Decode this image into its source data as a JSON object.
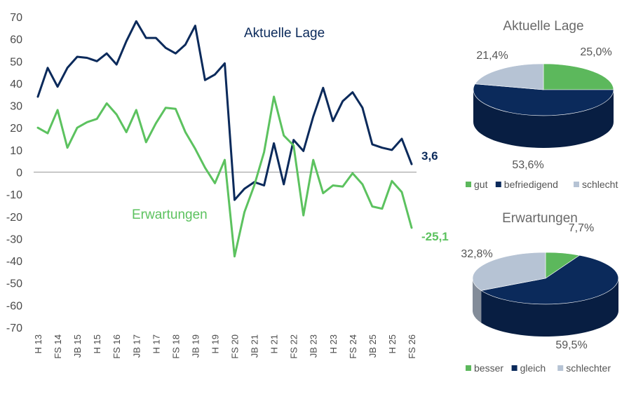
{
  "chart_data": [
    {
      "type": "line",
      "x_tick_labels": [
        "H 13",
        "FS 14",
        "JB 15",
        "H 15",
        "FS 16",
        "JB 17",
        "H 17",
        "FS 18",
        "JB 19",
        "H 19",
        "FS 20",
        "JB 21",
        "H 21",
        "FS 22",
        "JB 23",
        "H 23",
        "FS 24",
        "JB 25",
        "H 25",
        "FS 26"
      ],
      "ylim": [
        -70,
        70
      ],
      "y_ticks": [
        70,
        60,
        50,
        40,
        30,
        20,
        10,
        0,
        -10,
        -20,
        -30,
        -40,
        -50,
        -60,
        -70
      ],
      "grid": false,
      "zero_line": true,
      "series": [
        {
          "name": "Aktuelle Lage",
          "color": "#0b2a5b",
          "end_label": "3,6",
          "values": [
            34,
            47,
            38.5,
            47,
            52,
            51.5,
            50,
            53.5,
            48.5,
            59,
            68,
            60.5,
            60.5,
            56,
            53.5,
            57.5,
            66,
            41.5,
            44,
            49,
            -12.5,
            -7.5,
            -4.5,
            -6,
            13,
            -5.5,
            14.5,
            9.5,
            25,
            38,
            23,
            32,
            36,
            29,
            12.5,
            11,
            10,
            15,
            3.6
          ]
        },
        {
          "name": "Erwartungen",
          "color": "#5cc25f",
          "end_label": "-25,1",
          "values": [
            20,
            17.5,
            28,
            11,
            20,
            22.5,
            24,
            31,
            26,
            18,
            28,
            13.5,
            22,
            29,
            28.5,
            18,
            10.5,
            2,
            -5,
            5.5,
            -38,
            -18,
            -6,
            9,
            34,
            16.5,
            12,
            -19.5,
            5.5,
            -9.5,
            -6,
            -6.5,
            -0.5,
            -5.5,
            -15.5,
            -16.5,
            -4,
            -9,
            -25.1
          ]
        }
      ]
    },
    {
      "type": "pie",
      "title": "Aktuelle Lage",
      "slices": [
        {
          "label": "gut",
          "value": 25.0,
          "value_label": "25,0%",
          "color": "#5cb85c"
        },
        {
          "label": "befriedigend",
          "value": 53.6,
          "value_label": "53,6%",
          "color": "#0b2a5b"
        },
        {
          "label": "schlecht",
          "value": 21.4,
          "value_label": "21,4%",
          "color": "#b6c3d4"
        }
      ],
      "legend": "bottom"
    },
    {
      "type": "pie",
      "title": "Erwartungen",
      "slices": [
        {
          "label": "besser",
          "value": 7.7,
          "value_label": "7,7%",
          "color": "#5cb85c"
        },
        {
          "label": "gleich",
          "value": 59.5,
          "value_label": "59,5%",
          "color": "#0b2a5b"
        },
        {
          "label": "schlechter",
          "value": 32.8,
          "value_label": "32,8%",
          "color": "#b6c3d4"
        }
      ],
      "legend": "bottom"
    }
  ]
}
